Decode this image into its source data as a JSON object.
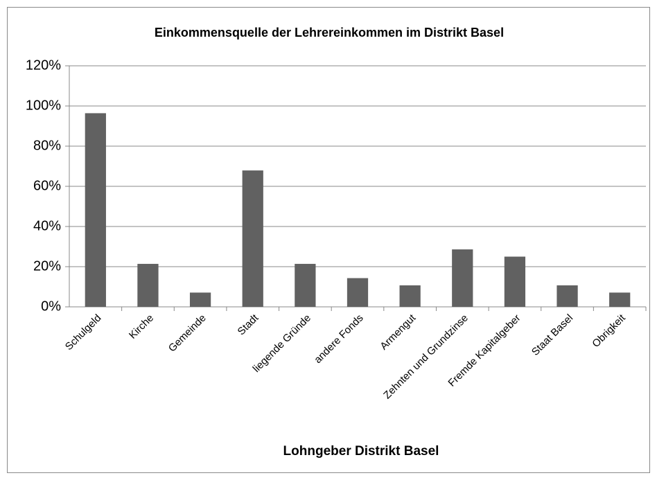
{
  "chart_data": {
    "type": "bar",
    "title": "Einkommensquelle der Lehrereinkommen im Distrikt Basel",
    "x_label": "Lohngeber Distrikt Basel",
    "categories": [
      "Schulgeld",
      "Kirche",
      "Gemeinde",
      "Stadt",
      "liegende Gründe",
      "andere Fonds",
      "Armengut",
      "Zehnten und Grundzinse",
      "Fremde Kapitalgeber",
      "Staat Basel",
      "Obrigkeit"
    ],
    "values": [
      96.4,
      21.4,
      7.1,
      67.9,
      21.4,
      14.3,
      10.7,
      28.6,
      25,
      10.7,
      7.1
    ],
    "color": "#616161",
    "ylim": [
      0,
      120
    ],
    "yticks": [
      {
        "value": 0,
        "label": "0%"
      },
      {
        "value": 20,
        "label": "20%"
      },
      {
        "value": 40,
        "label": "40%"
      },
      {
        "value": 60,
        "label": "60%"
      },
      {
        "value": 80,
        "label": "80%"
      },
      {
        "value": 100,
        "label": "100%"
      },
      {
        "value": 120,
        "label": "120%"
      }
    ],
    "grid": true
  }
}
